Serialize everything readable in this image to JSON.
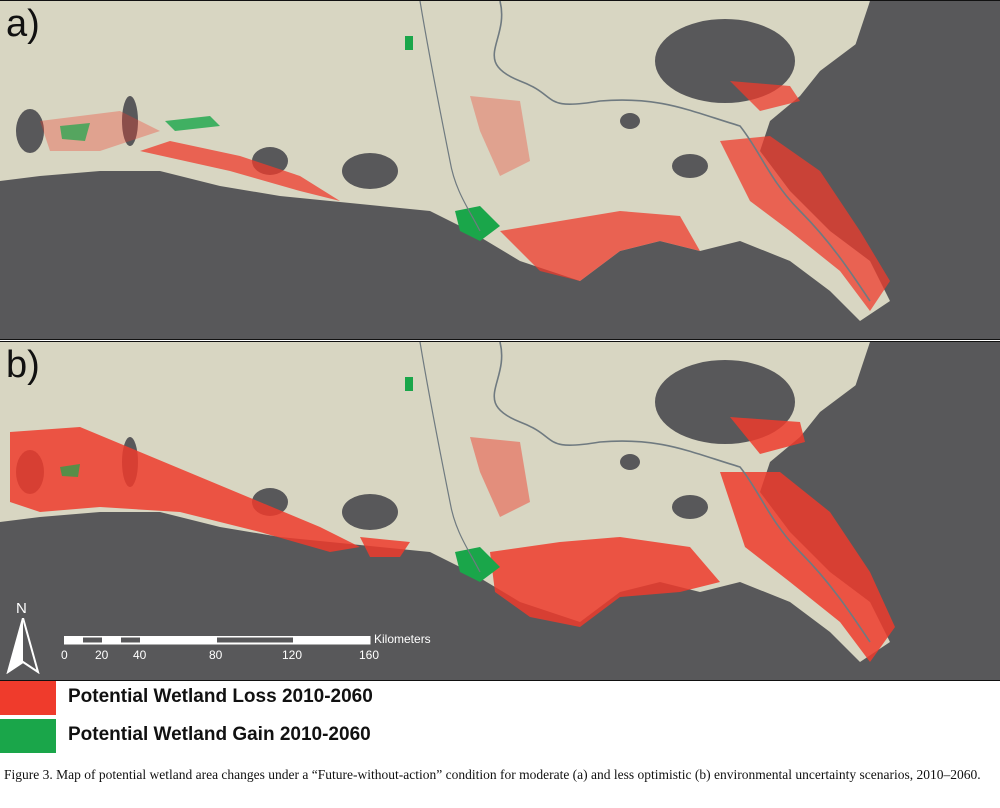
{
  "panels": [
    {
      "label": "a)"
    },
    {
      "label": "b)"
    }
  ],
  "north_arrow": {
    "label": "N"
  },
  "scale_bar": {
    "unit": "Kilometers",
    "ticks": [
      "0",
      "20",
      "40",
      "80",
      "120",
      "160"
    ]
  },
  "legend": [
    {
      "label": "Potential Wetland Loss 2010-2060",
      "color": "#ef3b2c"
    },
    {
      "label": "Potential Wetland Gain 2010-2060",
      "color": "#1aa64a"
    }
  ],
  "colors": {
    "water": "#58585a",
    "land": "#d8d6c2",
    "loss": "#ef3b2c",
    "gain": "#1aa64a"
  },
  "caption": "Figure 3.  Map of potential wetland area changes under a “Future-without-action” condition for moderate (a) and less optimistic (b) environmental uncertainty scenarios, 2010–2060."
}
